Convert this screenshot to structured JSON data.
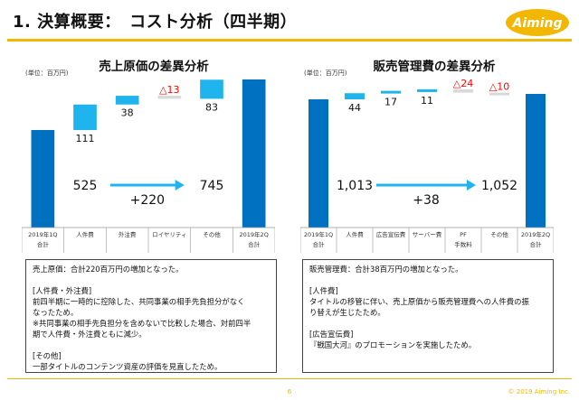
{
  "header": {
    "title": "1. 決算概要：　コスト分析（四半期）",
    "logo_text": "Aiming"
  },
  "colors": {
    "base_bar": "#0070C0",
    "increase_bar": "#1FB4EE",
    "decrease_bar": "#D9D9D9",
    "decrease_text": "#FF0000",
    "accent": "#F2B705",
    "arrow": "#1FB4EE"
  },
  "charts": [
    {
      "title": "売上原価の差異分析",
      "unit": "(単位：百万円)",
      "start_value_label": "525",
      "end_value_label": "745",
      "change_label": "+220",
      "categories": [
        {
          "line1": "2019年1Q",
          "line2": "合計"
        },
        {
          "line1": "人件費",
          "line2": ""
        },
        {
          "line1": "外注費",
          "line2": ""
        },
        {
          "line1": "ロイヤリティ",
          "line2": ""
        },
        {
          "line1": "その他",
          "line2": ""
        },
        {
          "line1": "2019年2Q",
          "line2": "合計"
        }
      ],
      "delta_labels": [
        "111",
        "38",
        "△13",
        "83"
      ],
      "footnote": [
        "売上原価：合計220百万円の増加となった。",
        "",
        "[人件費・外注費]",
        "前四半期に一時的に控除した、共同事業の相手先負担分がなく",
        "なったため。",
        "※共同事業の相手先負担分を含めないで比較した場合、対前四半",
        "期で人件費・外注費ともに減少。",
        "",
        "[その他]",
        "一部タイトルのコンテンツ資産の評価を見直したため。"
      ]
    },
    {
      "title": "販売管理費の差異分析",
      "unit": "(単位：百万円)",
      "start_value_label": "1,013",
      "end_value_label": "1,052",
      "change_label": "+38",
      "categories": [
        {
          "line1": "2019年1Q",
          "line2": "合計"
        },
        {
          "line1": "人件費",
          "line2": ""
        },
        {
          "line1": "広告宣伝費",
          "line2": ""
        },
        {
          "line1": "サーバー費",
          "line2": ""
        },
        {
          "line1": "PF",
          "line2": "手数料"
        },
        {
          "line1": "その他",
          "line2": ""
        },
        {
          "line1": "2019年2Q",
          "line2": "合計"
        }
      ],
      "delta_labels": [
        "44",
        "17",
        "11",
        "△24",
        "△10"
      ],
      "footnote": [
        "販売管理費：合計38百万円の増加となった。",
        "",
        "[人件費]",
        "タイトルの移管に伴い、売上原価から販売管理費への人件費の振",
        "り替えが生じたため。",
        "",
        "[広告宣伝費]",
        "『戦国大河』のプロモーションを実施したため。"
      ]
    }
  ],
  "chart_data": [
    {
      "type": "bar",
      "title": "売上原価の差異分析",
      "categories": [
        "2019年1Q 合計",
        "人件費",
        "外注費",
        "ロイヤリティ",
        "その他",
        "2019年2Q 合計"
      ],
      "values": [
        525,
        111,
        38,
        -13,
        83,
        745
      ],
      "ylim": [
        0,
        800
      ]
    },
    {
      "type": "bar",
      "title": "販売管理費の差異分析",
      "categories": [
        "2019年1Q 合計",
        "人件費",
        "広告宣伝費",
        "サーバー費",
        "PF 手数料",
        "その他",
        "2019年2Q 合計"
      ],
      "values": [
        1013,
        44,
        17,
        11,
        -24,
        -10,
        1052
      ],
      "ylim": [
        0,
        1150
      ]
    }
  ],
  "footer": {
    "page": "6",
    "copyright": "© 2019 Aiming Inc."
  }
}
